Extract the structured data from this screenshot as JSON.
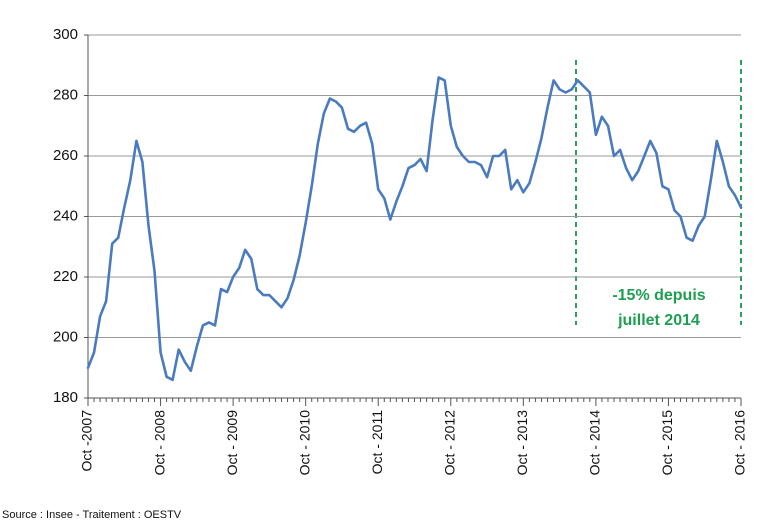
{
  "chart_data": {
    "type": "line",
    "source": "Source : Insee  - Traitement : OESTV",
    "annotation": [
      "-15% depuis",
      "juillet 2014"
    ],
    "categories": [
      "Oct -2007",
      null,
      null,
      null,
      null,
      null,
      null,
      null,
      null,
      null,
      null,
      null,
      "Oct - 2008",
      null,
      null,
      null,
      null,
      null,
      null,
      null,
      null,
      null,
      null,
      null,
      "Oct - 2009",
      null,
      null,
      null,
      null,
      null,
      null,
      null,
      null,
      null,
      null,
      null,
      "Oct - 2010",
      null,
      null,
      null,
      null,
      null,
      null,
      null,
      null,
      null,
      null,
      null,
      "Oct - 2011",
      null,
      null,
      null,
      null,
      null,
      null,
      null,
      null,
      null,
      null,
      null,
      "Oct - 2012",
      null,
      null,
      null,
      null,
      null,
      null,
      null,
      null,
      null,
      null,
      null,
      "Oct - 2013",
      null,
      null,
      null,
      null,
      null,
      null,
      null,
      null,
      null,
      null,
      null,
      "Oct - 2014",
      null,
      null,
      null,
      null,
      null,
      null,
      null,
      null,
      null,
      null,
      null,
      "Oct - 2015",
      null,
      null,
      null,
      null,
      null,
      null,
      null,
      null,
      null,
      null,
      null,
      "Oct - 2016"
    ],
    "series": [
      {
        "name": null,
        "color": "#4a7bbf",
        "values": [
          190,
          195,
          207,
          212,
          231,
          233,
          243,
          252,
          265,
          258,
          237,
          222,
          195,
          187,
          186,
          196,
          192,
          189,
          197,
          204,
          205,
          204,
          216,
          215,
          220,
          223,
          229,
          226,
          216,
          214,
          214,
          212,
          210,
          213,
          219,
          227,
          238,
          250,
          264,
          274,
          279,
          278,
          276,
          269,
          268,
          270,
          271,
          264,
          249,
          246,
          239,
          245,
          250,
          256,
          257,
          259,
          255,
          272,
          286,
          285,
          270,
          263,
          260,
          258,
          258,
          257,
          253,
          260,
          260,
          262,
          249,
          252,
          248,
          251,
          258,
          266,
          276,
          285,
          282,
          281,
          282,
          285,
          283,
          281,
          267,
          273,
          270,
          260,
          262,
          256,
          252,
          255,
          260,
          265,
          261,
          250,
          249,
          242,
          240,
          233,
          232,
          237,
          240,
          252,
          265,
          258,
          250,
          247,
          243
        ]
      }
    ],
    "ylim": [
      180,
      300
    ],
    "yticks": [
      180,
      200,
      220,
      240,
      260,
      280,
      300
    ],
    "grid": true
  }
}
